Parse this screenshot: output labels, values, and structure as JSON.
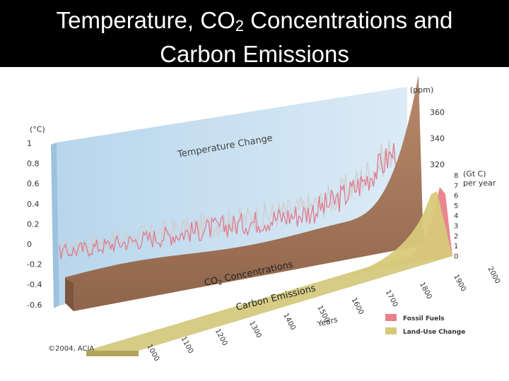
{
  "slide": {
    "title_line1_pre": "Temperature, CO",
    "title_line1_sub": "2",
    "title_line1_post": " Concentrations and",
    "title_line2": "Carbon Emissions"
  },
  "chart_data": {
    "type": "area",
    "temperature": {
      "label": "Temperature Change",
      "unit": "(°C)",
      "ticks": [
        1,
        0.8,
        0.6,
        0.4,
        0.2,
        0,
        -0.2,
        -0.4,
        -0.6
      ],
      "tick_labels": [
        "1",
        "0.8",
        "0.6",
        "0.4",
        "0.2",
        "0",
        "-0.2",
        "-0.4",
        "-0.6"
      ],
      "ylim": [
        -0.6,
        1
      ],
      "color": "#e07a8c"
    },
    "co2": {
      "label_pre": "CO",
      "label_sub": "2",
      "label_post": " Concentrations",
      "unit": "(ppm)",
      "tick_labels": [
        "360",
        "340",
        "320"
      ],
      "color": "#a67a5e"
    },
    "emissions": {
      "label": "Carbon Emissions",
      "unit": "(Gt C)",
      "unit2": "per year",
      "tick_labels": [
        "8",
        "7",
        "6",
        "5",
        "4",
        "3",
        "2",
        "1",
        "0"
      ],
      "ylim": [
        0,
        8
      ]
    },
    "x_axis": {
      "label": "Years",
      "tick_labels": [
        "1000",
        "1100",
        "1200",
        "1300",
        "1400",
        "1500",
        "1600",
        "1700",
        "1800",
        "1900",
        "2000"
      ]
    },
    "series": [
      {
        "name": "Fossil Fuels",
        "color": "#e8808a"
      },
      {
        "name": "Land-Use Change",
        "color": "#d8c97a"
      }
    ],
    "legend_position": "bottom-right",
    "credit": "©2004, ACIA"
  }
}
